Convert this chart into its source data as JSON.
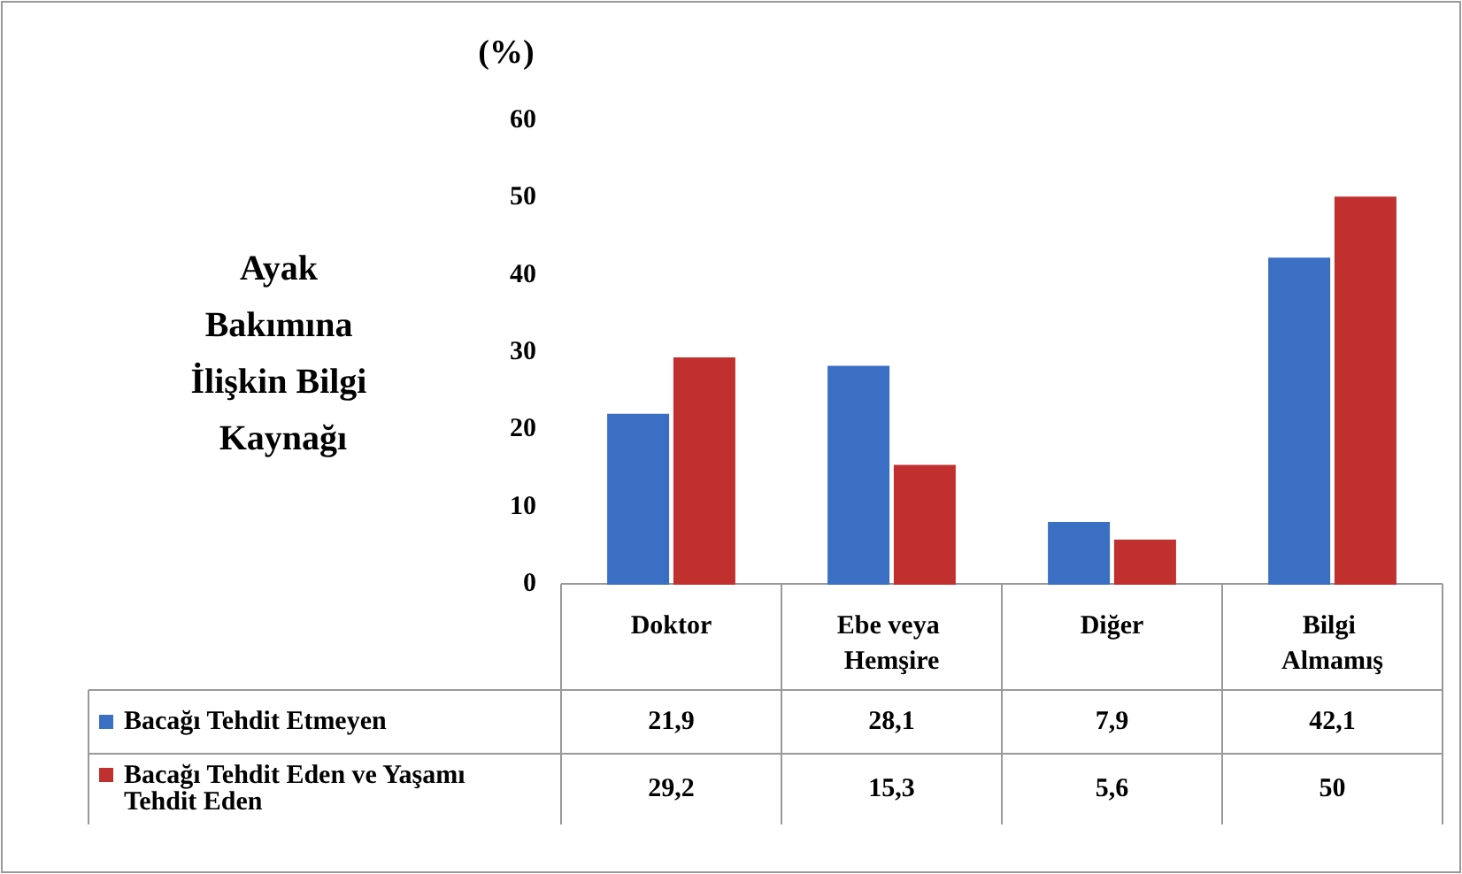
{
  "chart_data": {
    "type": "bar",
    "xlabel": "Ayak Bakımına İlişkin Bilgi Kaynağı",
    "ylabel": "(%)",
    "categories": [
      "Doktor",
      "Ebe veya Hemşire",
      "Diğer",
      "Bilgi Almamış"
    ],
    "series": [
      {
        "name": "Bacağı Tehdit Etmeyen",
        "color": "#3a6fc4",
        "values": [
          21.9,
          28.1,
          7.9,
          42.1
        ],
        "value_labels": [
          "21,9",
          "28,1",
          "7,9",
          "42,1"
        ]
      },
      {
        "name": "Bacağı Tehdit Eden ve Yaşamı Tehdit Eden",
        "color": "#c0302f",
        "values": [
          29.2,
          15.3,
          5.6,
          50
        ],
        "value_labels": [
          "29,2",
          "15,3",
          "5,6",
          "50"
        ]
      }
    ],
    "ylim": [
      0,
      60
    ],
    "yticks": [
      0,
      10,
      20,
      30,
      40,
      50,
      60
    ],
    "grid": false,
    "legend": "bottom"
  }
}
